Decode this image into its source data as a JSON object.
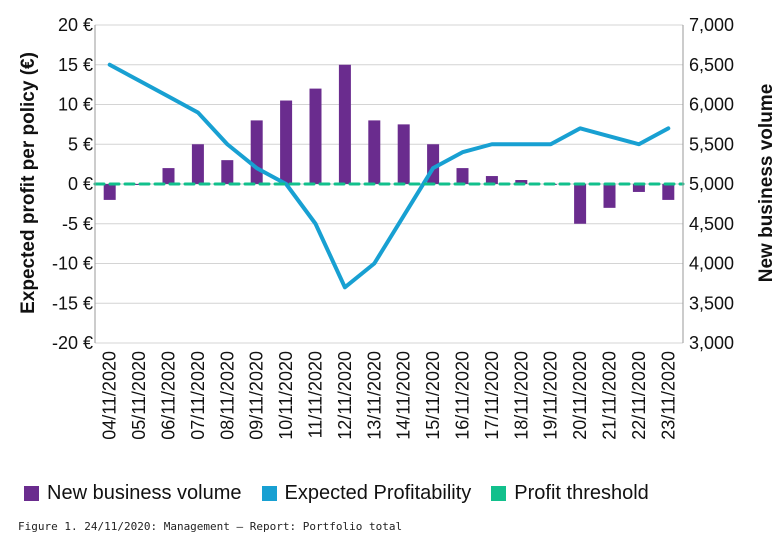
{
  "chart_data": {
    "type": "bar",
    "categories": [
      "04/11/2020",
      "05/11/2020",
      "06/11/2020",
      "07/11/2020",
      "08/11/2020",
      "09/11/2020",
      "10/11/2020",
      "11/11/2020",
      "12/11/2020",
      "13/11/2020",
      "14/11/2020",
      "15/11/2020",
      "16/11/2020",
      "17/11/2020",
      "18/11/2020",
      "19/11/2020",
      "20/11/2020",
      "21/11/2020",
      "22/11/2020",
      "23/11/2020"
    ],
    "series": [
      {
        "name": "New business volume",
        "type": "bar",
        "axis": "right",
        "color": "#6a2c8e",
        "values": [
          4800,
          5000,
          5200,
          5500,
          5300,
          5800,
          6050,
          6200,
          6500,
          5800,
          5750,
          5500,
          5200,
          5100,
          5050,
          5000,
          4500,
          4700,
          4900,
          4800
        ]
      },
      {
        "name": "Expected Profitability",
        "type": "line",
        "axis": "left",
        "color": "#18a0d2",
        "values": [
          15,
          13,
          11,
          9,
          5,
          2,
          0,
          -5,
          -13,
          -10,
          -4,
          2,
          4,
          5,
          5,
          5,
          7,
          6,
          5,
          7
        ]
      },
      {
        "name": "Profit threshold",
        "type": "line",
        "axis": "left",
        "dashed": true,
        "color": "#12c08c",
        "values": [
          0,
          0,
          0,
          0,
          0,
          0,
          0,
          0,
          0,
          0,
          0,
          0,
          0,
          0,
          0,
          0,
          0,
          0,
          0,
          0
        ]
      }
    ],
    "ylabel": "Expected profit per policy (€)",
    "ylabel_right": "New business volume",
    "ylim": [
      -20,
      20
    ],
    "ylim_right": [
      3000,
      7000
    ],
    "yticks": [
      "-20 €",
      "-15 €",
      "-10 €",
      "-5 €",
      "0 €",
      "5 €",
      "10 €",
      "15 €",
      "20 €"
    ],
    "yticks_right": [
      "3,000",
      "3,500",
      "4,000",
      "4,500",
      "5,000",
      "5,500",
      "6,000",
      "6,500",
      "7,000"
    ],
    "grid": true,
    "legend_position": "bottom"
  },
  "legend": [
    {
      "label": "New business volume",
      "color": "#6a2c8e"
    },
    {
      "label": "Expected Profitability",
      "color": "#18a0d2"
    },
    {
      "label": "Profit threshold",
      "color": "#12c08c"
    }
  ],
  "caption": "Figure 1. 24/11/2020: Management – Report: Portfolio total"
}
